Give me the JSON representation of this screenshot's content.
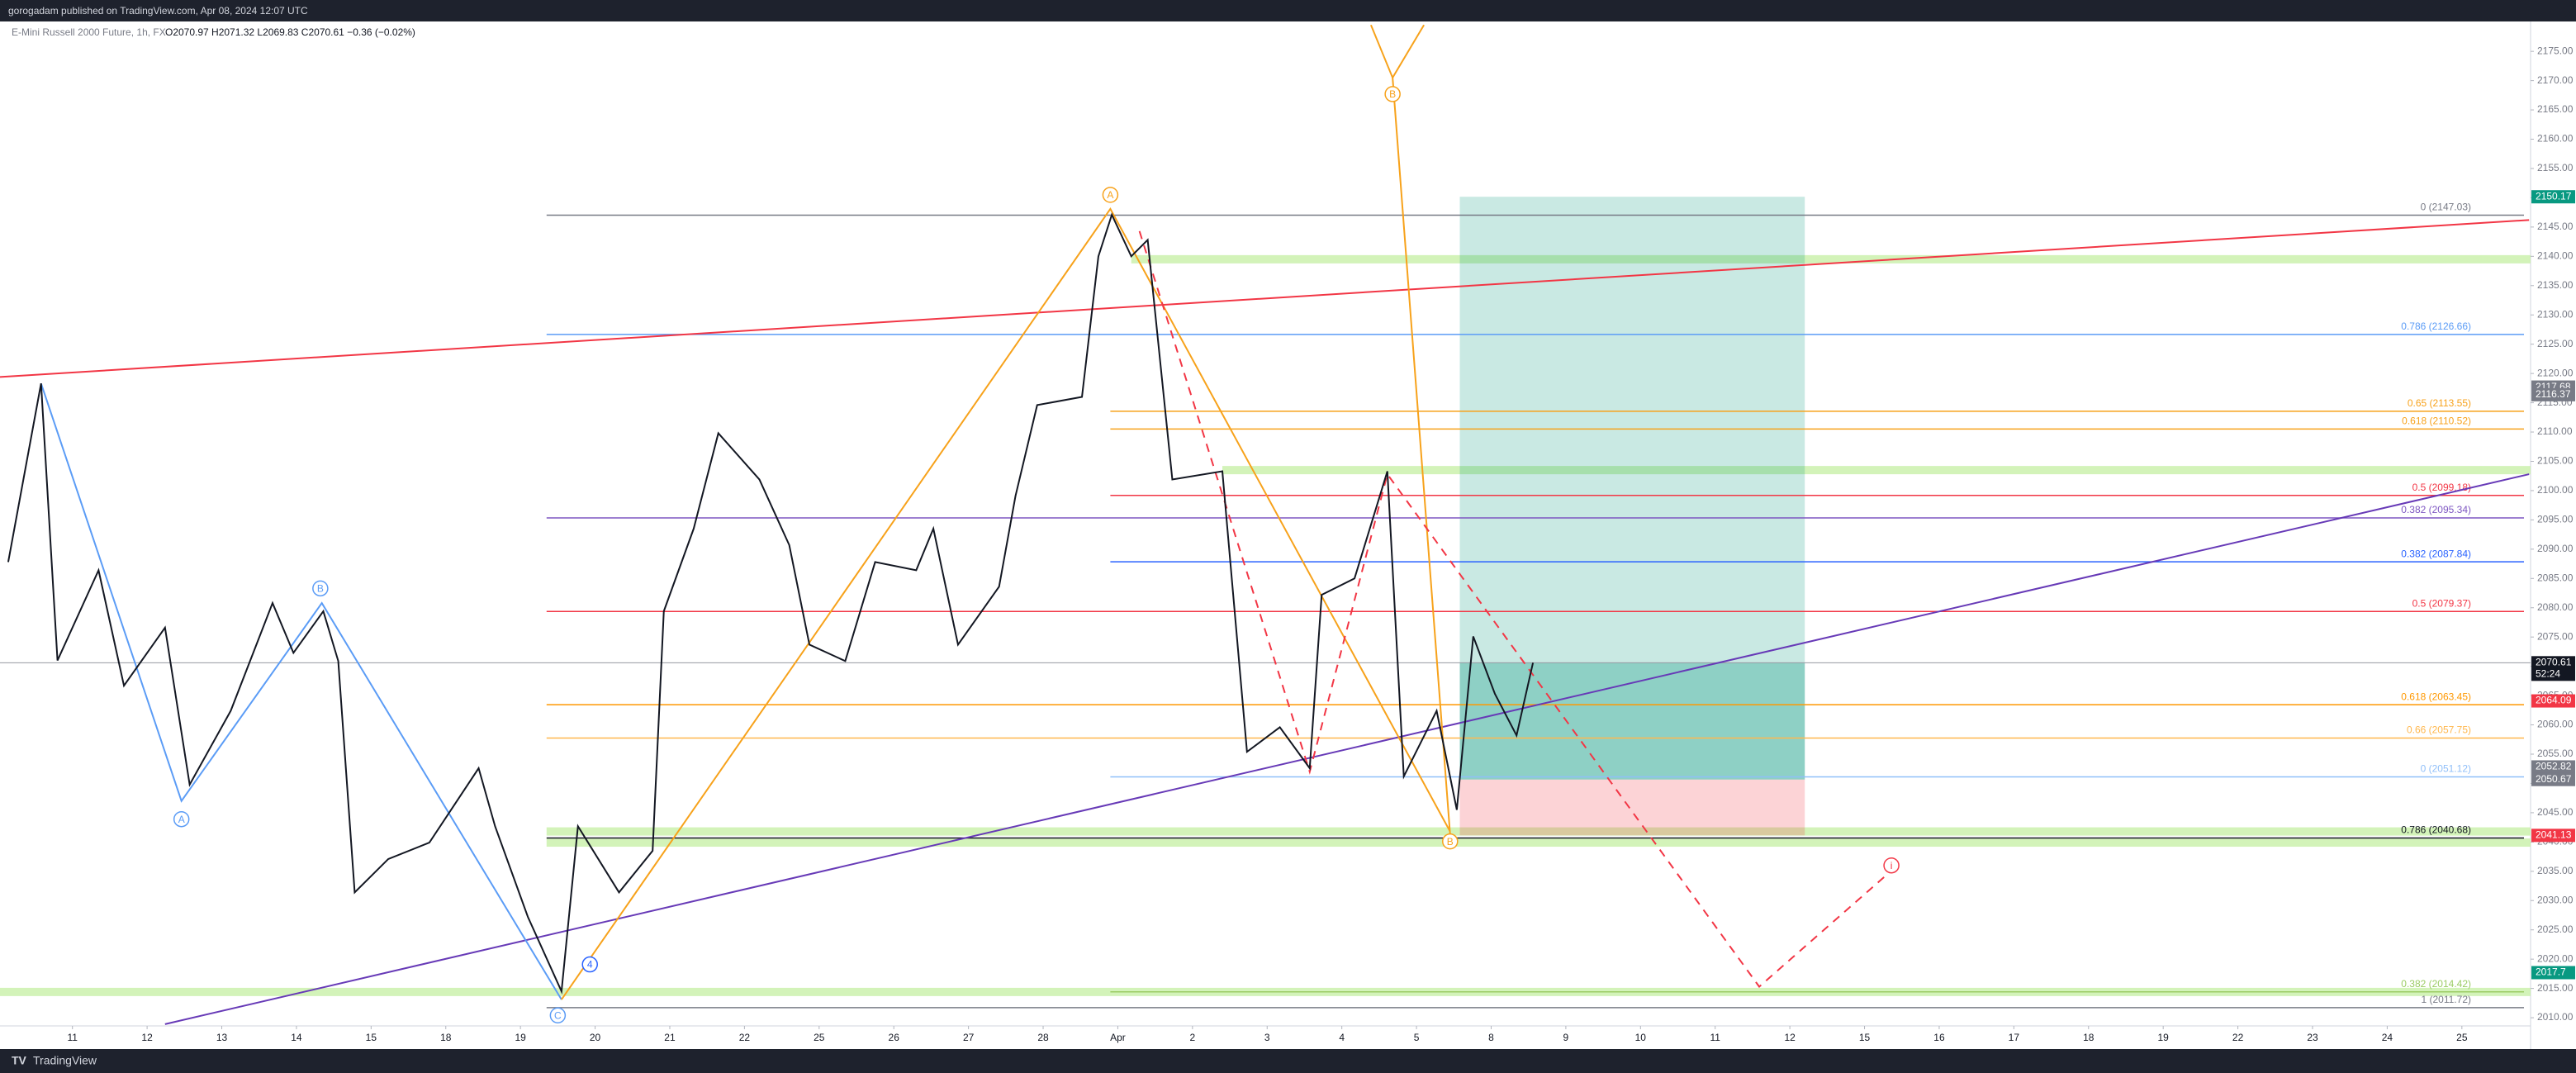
{
  "header": {
    "publisher": "gorogadam published on TradingView.com, Apr 08, 2024 12:07 UTC",
    "brand": "TradingView"
  },
  "chart_data": {
    "type": "line",
    "title": "E-Mini Russell 2000 Future, 1h, FX",
    "ohlc": "O2070.97 H2071.32 L2069.83 C2070.61 −0.36 (−0.02%)",
    "color": "#131722",
    "x": [
      -0.86,
      -0.42,
      -0.2,
      0.35,
      0.69,
      1.24,
      1.57,
      2.12,
      2.68,
      2.96,
      3.36,
      3.56,
      3.78,
      4.23,
      4.78,
      5.44,
      5.66,
      6.1,
      6.55,
      6.77,
      7.32,
      7.77,
      7.92,
      8.32,
      8.65,
      9.2,
      9.6,
      9.87,
      10.35,
      10.75,
      11.3,
      11.53,
      11.86,
      12.41,
      12.63,
      12.92,
      13.52,
      13.74,
      13.92,
      14.18,
      14.4,
      14.73,
      15.4,
      15.73,
      16.17,
      16.57,
      16.73,
      17.17,
      17.61,
      17.83,
      18.27,
      18.54,
      18.76,
      19.05,
      19.34,
      19.56
    ],
    "values": [
      2087.8,
      2118.3,
      2071,
      2086.4,
      2066.7,
      2076.6,
      2049.8,
      2062.4,
      2080.8,
      2072.3,
      2079.4,
      2070.9,
      2031.4,
      2037.1,
      2039.9,
      2052.6,
      2042.7,
      2027.2,
      2014.5,
      2042.7,
      2031.4,
      2038.5,
      2079.4,
      2093.5,
      2109.8,
      2101.9,
      2090.7,
      2073.7,
      2070.9,
      2087.8,
      2086.4,
      2093.5,
      2073.7,
      2083.6,
      2099.1,
      2114.6,
      2116,
      2140,
      2147.1,
      2140,
      2142.8,
      2101.9,
      2103.3,
      2055.4,
      2059.6,
      2052.6,
      2082.2,
      2085,
      2103.3,
      2051.2,
      2062.4,
      2045.5,
      2075.1,
      2065.3,
      2058.2,
      2070.61
    ],
    "xlim": [
      -0.97,
      32.92
    ],
    "ylim": [
      2008.6,
      2180.1
    ],
    "xticks": [
      {
        "value": 0,
        "label": "11"
      },
      {
        "value": 1,
        "label": "12"
      },
      {
        "value": 2,
        "label": "13"
      },
      {
        "value": 3,
        "label": "14"
      },
      {
        "value": 4,
        "label": "15"
      },
      {
        "value": 5,
        "label": "18"
      },
      {
        "value": 6,
        "label": "19"
      },
      {
        "value": 7,
        "label": "20"
      },
      {
        "value": 8,
        "label": "21"
      },
      {
        "value": 9,
        "label": "22"
      },
      {
        "value": 10,
        "label": "25"
      },
      {
        "value": 11,
        "label": "26"
      },
      {
        "value": 12,
        "label": "27"
      },
      {
        "value": 13,
        "label": "28"
      },
      {
        "value": 14,
        "label": "Apr"
      },
      {
        "value": 15,
        "label": "2"
      },
      {
        "value": 16,
        "label": "3"
      },
      {
        "value": 17,
        "label": "4"
      },
      {
        "value": 18,
        "label": "5"
      },
      {
        "value": 19,
        "label": "8"
      },
      {
        "value": 20,
        "label": "9"
      },
      {
        "value": 21,
        "label": "10"
      },
      {
        "value": 22,
        "label": "11"
      },
      {
        "value": 23,
        "label": "12"
      },
      {
        "value": 24,
        "label": "15"
      },
      {
        "value": 25,
        "label": "16"
      },
      {
        "value": 26,
        "label": "17"
      },
      {
        "value": 27,
        "label": "18"
      },
      {
        "value": 28,
        "label": "19"
      },
      {
        "value": 29,
        "label": "22"
      },
      {
        "value": 30,
        "label": "23"
      },
      {
        "value": 31,
        "label": "24"
      },
      {
        "value": 32,
        "label": "25"
      }
    ],
    "yticks": [
      {
        "value": 2175,
        "label": "2175.00"
      },
      {
        "value": 2170,
        "label": "2170.00"
      },
      {
        "value": 2165,
        "label": "2165.00"
      },
      {
        "value": 2160,
        "label": "2160.00"
      },
      {
        "value": 2155,
        "label": "2155.00"
      },
      {
        "value": 2150,
        "label": "2150.00"
      },
      {
        "value": 2145,
        "label": "2145.00"
      },
      {
        "value": 2140,
        "label": "2140.00"
      },
      {
        "value": 2135,
        "label": "2135.00"
      },
      {
        "value": 2130,
        "label": "2130.00"
      },
      {
        "value": 2125,
        "label": "2125.00"
      },
      {
        "value": 2120,
        "label": "2120.00"
      },
      {
        "value": 2115,
        "label": "2115.00"
      },
      {
        "value": 2110,
        "label": "2110.00"
      },
      {
        "value": 2105,
        "label": "2105.00"
      },
      {
        "value": 2100,
        "label": "2100.00"
      },
      {
        "value": 2095,
        "label": "2095.00"
      },
      {
        "value": 2090,
        "label": "2090.00"
      },
      {
        "value": 2085,
        "label": "2085.00"
      },
      {
        "value": 2080,
        "label": "2080.00"
      },
      {
        "value": 2075,
        "label": "2075.00"
      },
      {
        "value": 2070,
        "label": "2070.00"
      },
      {
        "value": 2065,
        "label": "2065.00"
      },
      {
        "value": 2060,
        "label": "2060.00"
      },
      {
        "value": 2055,
        "label": "2055.00"
      },
      {
        "value": 2050,
        "label": "2050.00"
      },
      {
        "value": 2045,
        "label": "2045.00"
      },
      {
        "value": 2040,
        "label": "2040.00"
      },
      {
        "value": 2035,
        "label": "2035.00"
      },
      {
        "value": 2030,
        "label": "2030.00"
      },
      {
        "value": 2025,
        "label": "2025.00"
      },
      {
        "value": 2020,
        "label": "2020.00"
      },
      {
        "value": 2015,
        "label": "2015.00"
      },
      {
        "value": 2010,
        "label": "2010.00"
      }
    ],
    "price_tags": [
      {
        "value": 2150.17,
        "color": "#089981"
      },
      {
        "value": 2117.68,
        "color": "#787b86"
      },
      {
        "value": 2116.37,
        "color": "#787b86"
      },
      {
        "value": 2070.61,
        "color": "#131722",
        "countdown": "52:24"
      },
      {
        "value": 2064.09,
        "color": "#f23645"
      },
      {
        "value": 2052.82,
        "color": "#787b86"
      },
      {
        "value": 2050.67,
        "color": "#787b86"
      },
      {
        "value": 2041.13,
        "color": "#f23645"
      },
      {
        "value": 2017.7,
        "color": "#089981"
      }
    ],
    "levels": [
      {
        "label": "0 (2147.03)",
        "value": 2147.03,
        "from": 6.35,
        "color": "#787b86"
      },
      {
        "label": "0.786 (2126.66)",
        "value": 2126.66,
        "from": 6.35,
        "color": "#5b9cf6"
      },
      {
        "label": "0.65 (2113.55)",
        "value": 2113.55,
        "from": 13.9,
        "color": "#f7a21b"
      },
      {
        "label": "0.618 (2110.52)",
        "value": 2110.52,
        "from": 13.9,
        "color": "#f7a21b"
      },
      {
        "label": "0.5 (2099.18)",
        "value": 2099.18,
        "from": 13.9,
        "color": "#f23645"
      },
      {
        "label": "0.382 (2095.34)",
        "value": 2095.34,
        "from": 6.35,
        "color": "#7e57c2"
      },
      {
        "label": "0.382 (2087.84)",
        "value": 2087.84,
        "from": 13.9,
        "color": "#2962ff"
      },
      {
        "label": "0.5 (2079.37)",
        "value": 2079.37,
        "from": 6.35,
        "color": "#f23645"
      },
      {
        "label": "0.618 (2063.45)",
        "value": 2063.45,
        "from": 6.35,
        "color": "#ff9800"
      },
      {
        "label": "0.66 (2057.75)",
        "value": 2057.75,
        "from": 6.35,
        "color": "#ffb74d"
      },
      {
        "label": "0 (2051.12)",
        "value": 2051.12,
        "from": 13.9,
        "color": "#90bff9"
      },
      {
        "label": "0.786 (2040.68)",
        "value": 2040.68,
        "from": 6.35,
        "color": "#131722"
      },
      {
        "label": "0.382 (2014.42)",
        "value": 2014.42,
        "from": 13.9,
        "color": "#9ccc65"
      },
      {
        "label": "1 (2011.72)",
        "value": 2011.72,
        "from": 6.35,
        "color": "#787b86"
      }
    ],
    "bands": [
      {
        "price": 2139.5,
        "from": 14.18,
        "color": "#c8f0a8"
      },
      {
        "price": 2103.5,
        "from": 15.4,
        "color": "#c8f0a8"
      },
      {
        "price": 2041.8,
        "from": 6.35,
        "color": "#c8f0a8"
      },
      {
        "price": 2039.9,
        "from": 6.35,
        "color": "#c8f0a8"
      },
      {
        "price": 2014.4,
        "from": -0.97,
        "color": "#c8f0a8"
      }
    ],
    "position": {
      "from": 18.58,
      "to": 23.2,
      "target": 2150.17,
      "entry": 2050.67,
      "stop": 2041.13
    },
    "drawings": [
      {
        "color": "#f23645",
        "dash": false,
        "x": [
          -0.97,
          32.9
        ],
        "y": [
          2119.4,
          2146.2
        ]
      },
      {
        "color": "#673ab7",
        "dash": false,
        "x": [
          1.24,
          32.9
        ],
        "y": [
          2008.9,
          2102.8
        ]
      },
      {
        "color": "#5b9cf6",
        "dash": false,
        "x": [
          -0.42,
          1.46,
          3.34,
          6.55
        ],
        "y": [
          2118.3,
          2047,
          2080.8,
          2013.1
        ]
      },
      {
        "color": "#f7a21b",
        "dash": false,
        "x": [
          6.55,
          13.9,
          18.45
        ],
        "y": [
          2013.1,
          2148.1,
          2041.8
        ]
      },
      {
        "color": "#f7a21b",
        "dash": false,
        "x": [
          17.39,
          17.68,
          18.1
        ],
        "y": [
          2179.5,
          2170.5,
          2179.5
        ]
      },
      {
        "color": "#f7a21b",
        "dash": false,
        "x": [
          17.68,
          18.45
        ],
        "y": [
          2170.5,
          2041.3
        ]
      },
      {
        "color": "#f23645",
        "dash": true,
        "x": [
          14.29,
          16.57,
          17.61,
          22.59,
          24.36
        ],
        "y": [
          2144.3,
          2052,
          2102.8,
          2015.3,
          2035.1
        ]
      }
    ],
    "annotations": [
      {
        "text": "A",
        "x": 1.46,
        "y": 2043.9,
        "color": "#5b9cf6"
      },
      {
        "text": "B",
        "x": 3.32,
        "y": 2083.3,
        "color": "#5b9cf6"
      },
      {
        "text": "C",
        "x": 6.5,
        "y": 2010.4,
        "color": "#5b9cf6"
      },
      {
        "text": "4",
        "x": 6.93,
        "y": 2019.1,
        "color": "#2962ff"
      },
      {
        "text": "A",
        "x": 13.9,
        "y": 2150.5,
        "color": "#f7a21b"
      },
      {
        "text": "B",
        "x": 17.68,
        "y": 2167.7,
        "color": "#f7a21b"
      },
      {
        "text": "B",
        "x": 18.45,
        "y": 2040.1,
        "color": "#f7a21b"
      },
      {
        "text": "i",
        "x": 24.36,
        "y": 2036.0,
        "color": "#f23645"
      }
    ]
  }
}
